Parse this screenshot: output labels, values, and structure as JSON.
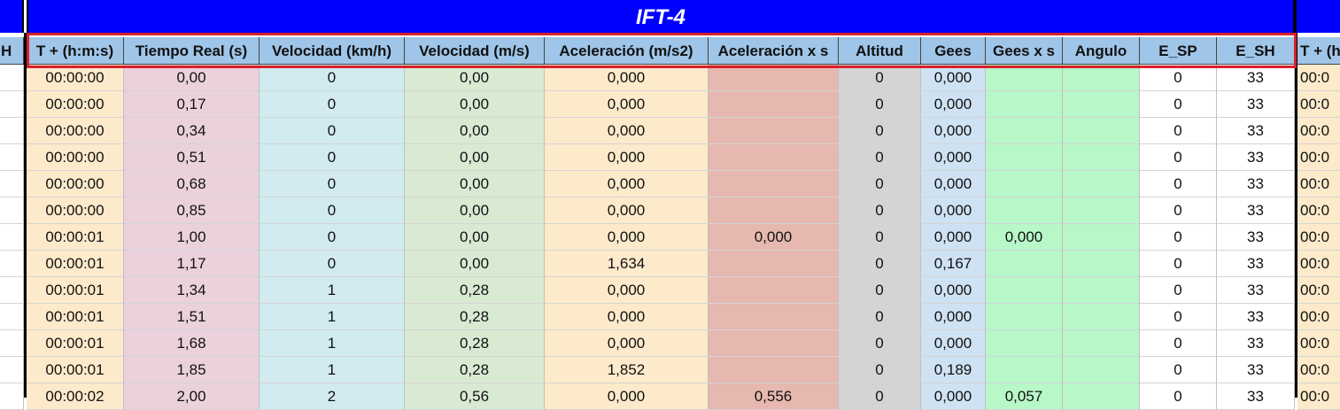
{
  "title": "IFT-4",
  "left_partial_header": "H",
  "right_partial_header": "T + (h:",
  "right_partial_cell": "00:0",
  "columns": [
    {
      "key": "t",
      "label": "T + (h:m:s)",
      "color": "#fdeacb"
    },
    {
      "key": "tr",
      "label": "Tiempo Real (s)",
      "color": "#ead1dc"
    },
    {
      "key": "vk",
      "label": "Velocidad (km/h)",
      "color": "#d1ebf0"
    },
    {
      "key": "vm",
      "label": "Velocidad (m/s)",
      "color": "#d9ead3"
    },
    {
      "key": "ac",
      "label": "Aceleración (m/s2)",
      "color": "#fdeacb"
    },
    {
      "key": "axs",
      "label": "Aceleración x s",
      "color": "#e6b8af"
    },
    {
      "key": "alt",
      "label": "Altitud",
      "color": "#d4d4d4"
    },
    {
      "key": "g",
      "label": "Gees",
      "color": "#cfe2f3"
    },
    {
      "key": "gxs",
      "label": "Gees x s",
      "color": "#b7f7c8"
    },
    {
      "key": "ang",
      "label": "Angulo",
      "color": "#b7f7c8"
    },
    {
      "key": "esp",
      "label": "E_SP",
      "color": "#ffffff"
    },
    {
      "key": "esh",
      "label": "E_SH",
      "color": "#ffffff"
    }
  ],
  "rows": [
    [
      "00:00:00",
      "0,00",
      "0",
      "0,00",
      "0,000",
      "",
      "0",
      "0,000",
      "",
      "",
      "0",
      "33"
    ],
    [
      "00:00:00",
      "0,17",
      "0",
      "0,00",
      "0,000",
      "",
      "0",
      "0,000",
      "",
      "",
      "0",
      "33"
    ],
    [
      "00:00:00",
      "0,34",
      "0",
      "0,00",
      "0,000",
      "",
      "0",
      "0,000",
      "",
      "",
      "0",
      "33"
    ],
    [
      "00:00:00",
      "0,51",
      "0",
      "0,00",
      "0,000",
      "",
      "0",
      "0,000",
      "",
      "",
      "0",
      "33"
    ],
    [
      "00:00:00",
      "0,68",
      "0",
      "0,00",
      "0,000",
      "",
      "0",
      "0,000",
      "",
      "",
      "0",
      "33"
    ],
    [
      "00:00:00",
      "0,85",
      "0",
      "0,00",
      "0,000",
      "",
      "0",
      "0,000",
      "",
      "",
      "0",
      "33"
    ],
    [
      "00:00:01",
      "1,00",
      "0",
      "0,00",
      "0,000",
      "0,000",
      "0",
      "0,000",
      "0,000",
      "",
      "0",
      "33"
    ],
    [
      "00:00:01",
      "1,17",
      "0",
      "0,00",
      "1,634",
      "",
      "0",
      "0,167",
      "",
      "",
      "0",
      "33"
    ],
    [
      "00:00:01",
      "1,34",
      "1",
      "0,28",
      "0,000",
      "",
      "0",
      "0,000",
      "",
      "",
      "0",
      "33"
    ],
    [
      "00:00:01",
      "1,51",
      "1",
      "0,28",
      "0,000",
      "",
      "0",
      "0,000",
      "",
      "",
      "0",
      "33"
    ],
    [
      "00:00:01",
      "1,68",
      "1",
      "0,28",
      "0,000",
      "",
      "0",
      "0,000",
      "",
      "",
      "0",
      "33"
    ],
    [
      "00:00:01",
      "1,85",
      "1",
      "0,28",
      "1,852",
      "",
      "0",
      "0,189",
      "",
      "",
      "0",
      "33"
    ],
    [
      "00:00:02",
      "2,00",
      "2",
      "0,56",
      "0,000",
      "0,556",
      "0",
      "0,000",
      "0,057",
      "",
      "0",
      "33"
    ]
  ]
}
